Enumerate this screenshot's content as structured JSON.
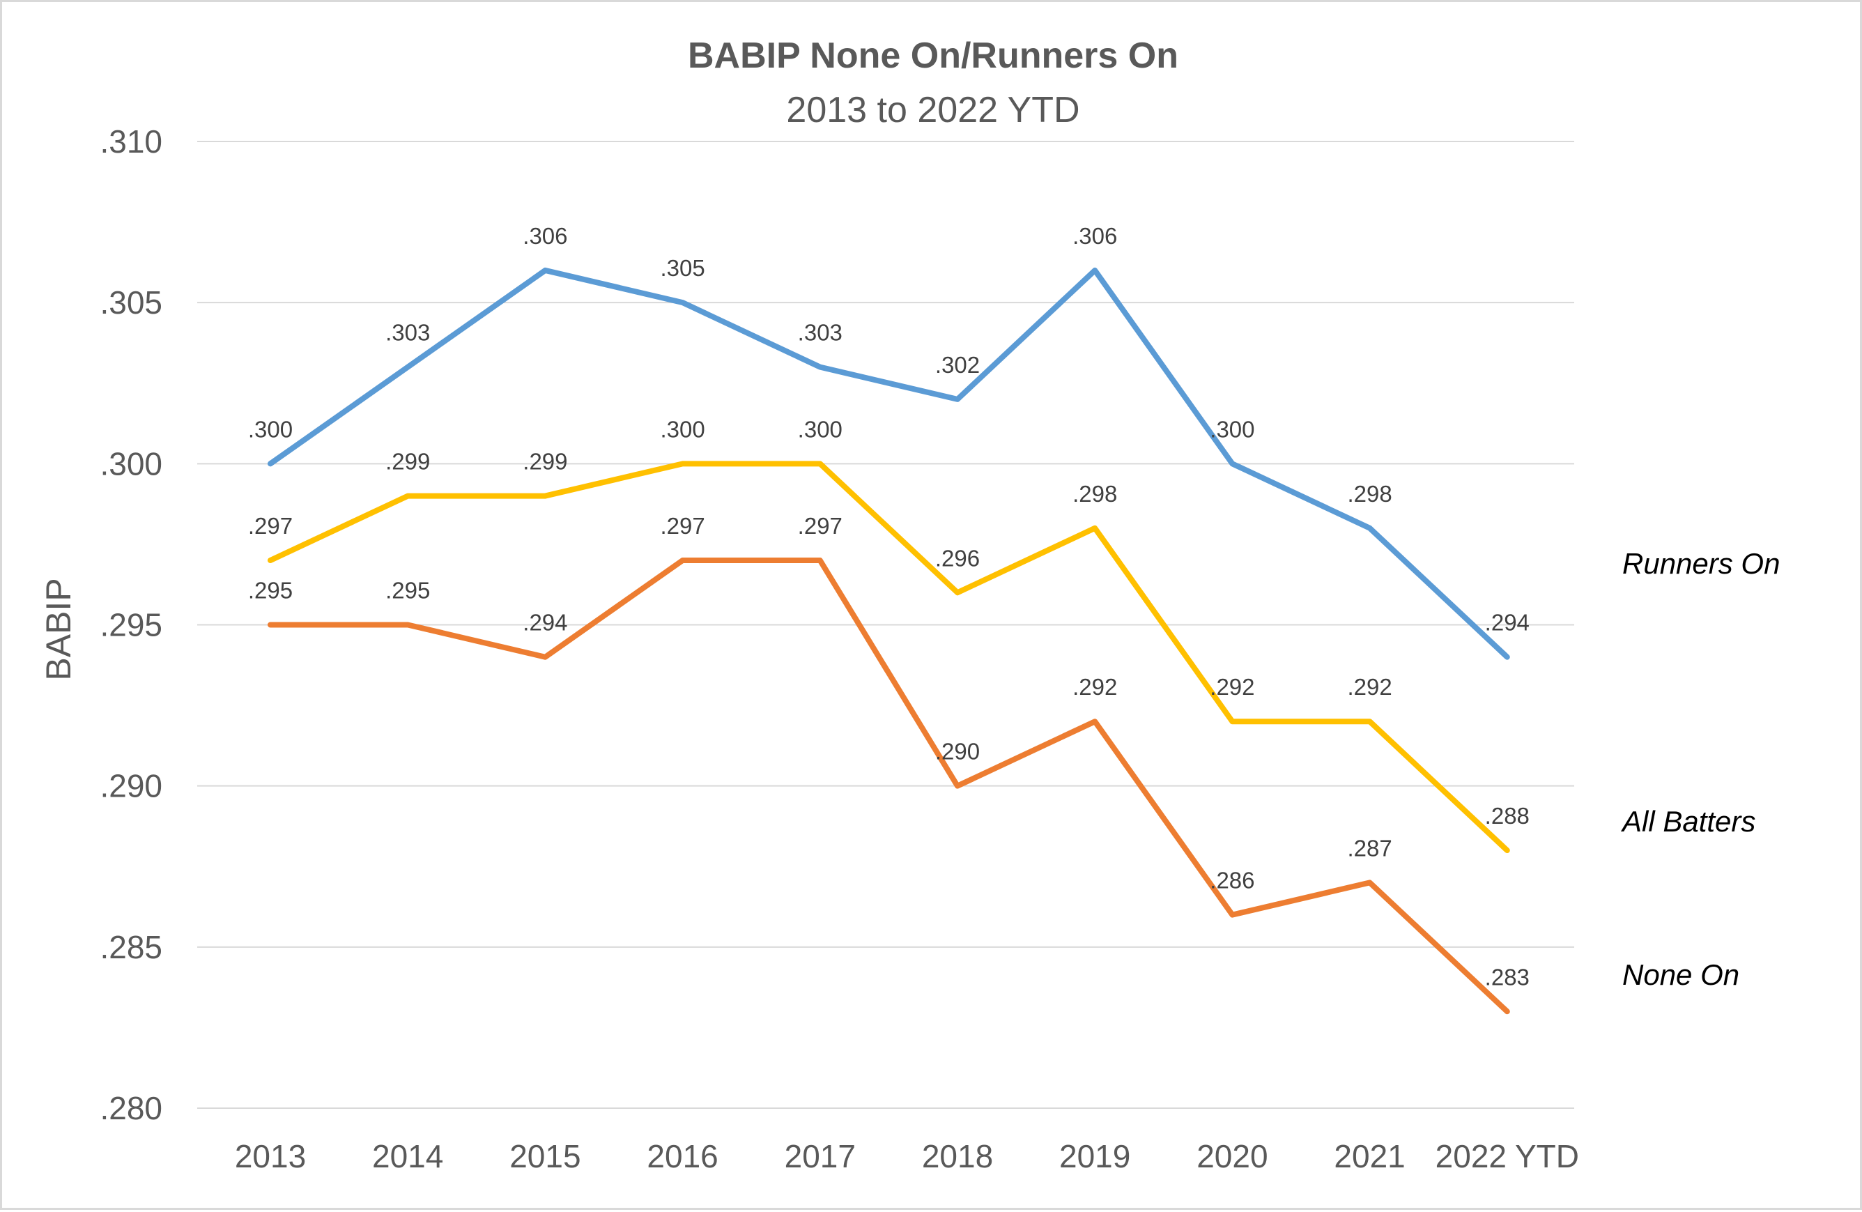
{
  "chart_data": {
    "type": "line",
    "title": "BABIP None On/Runners On",
    "subtitle": "2013 to 2022 YTD",
    "xlabel": "",
    "ylabel": "BABIP",
    "ylim": [
      0.28,
      0.31
    ],
    "y_ticks": [
      ".280",
      ".285",
      ".290",
      ".295",
      ".300",
      ".305",
      ".310"
    ],
    "grid": true,
    "categories": [
      "2013",
      "2014",
      "2015",
      "2016",
      "2017",
      "2018",
      "2019",
      "2020",
      "2021",
      "2022 YTD"
    ],
    "series": [
      {
        "name": "Runners On",
        "color": "#5b9bd5",
        "values": [
          0.3,
          0.303,
          0.306,
          0.305,
          0.303,
          0.302,
          0.306,
          0.3,
          0.298,
          0.294
        ],
        "labels": [
          ".300",
          ".303",
          ".306",
          ".305",
          ".303",
          ".302",
          ".306",
          ".300",
          ".298",
          ".294"
        ]
      },
      {
        "name": "All Batters",
        "color": "#ffc000",
        "values": [
          0.297,
          0.299,
          0.299,
          0.3,
          0.3,
          0.296,
          0.298,
          0.292,
          0.292,
          0.288
        ],
        "labels": [
          ".297",
          ".299",
          ".299",
          ".300",
          ".300",
          ".296",
          ".298",
          ".292",
          ".292",
          ".288"
        ]
      },
      {
        "name": "None On",
        "color": "#ed7d31",
        "values": [
          0.295,
          0.295,
          0.294,
          0.297,
          0.297,
          0.29,
          0.292,
          0.286,
          0.287,
          0.283
        ],
        "labels": [
          ".295",
          ".295",
          ".294",
          ".297",
          ".297",
          ".290",
          ".292",
          ".286",
          ".287",
          ".283"
        ]
      }
    ]
  }
}
